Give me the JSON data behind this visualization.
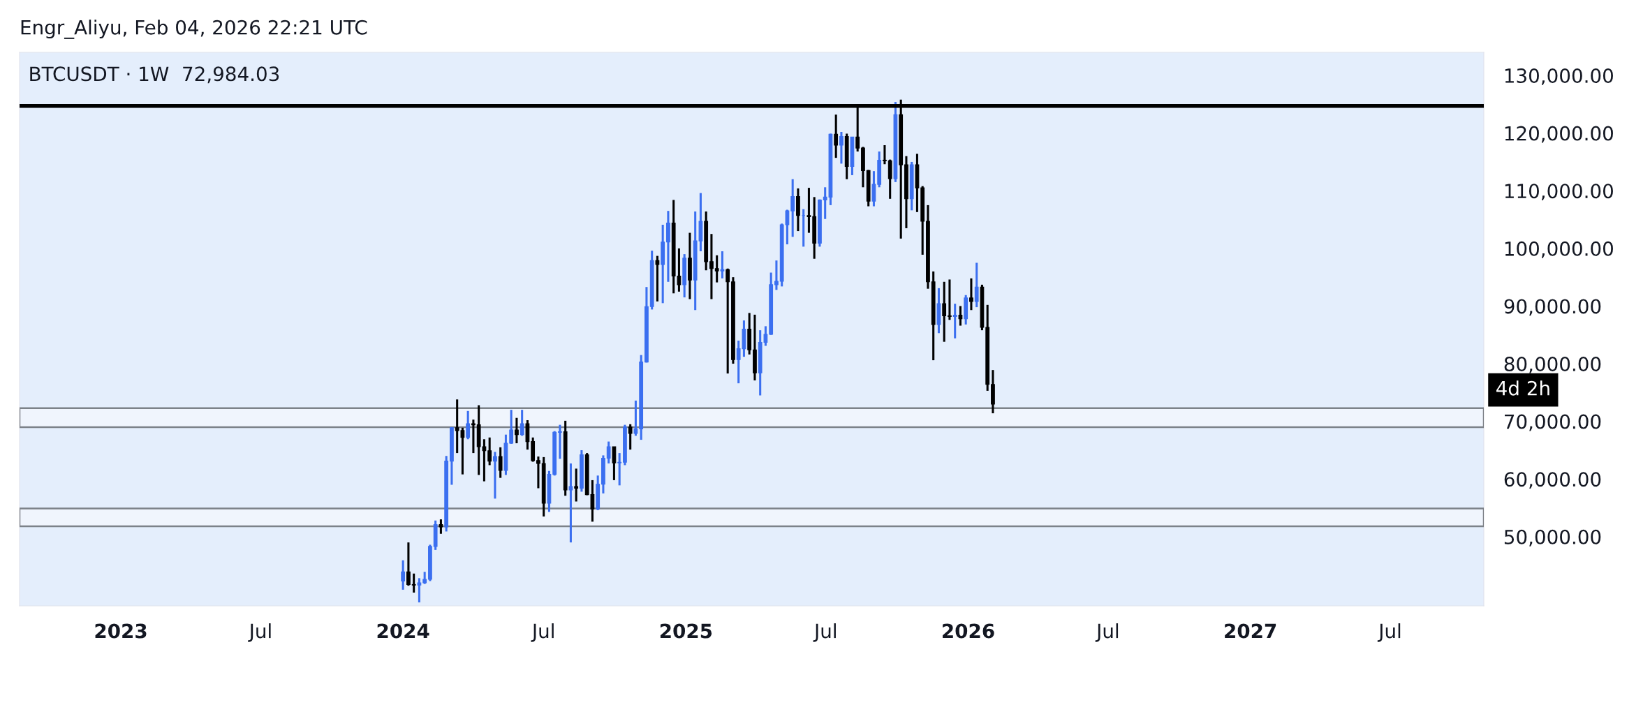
{
  "chart_data": {
    "type": "candlestick",
    "title": "BTCUSDT · 1W  72,984.03",
    "annotations": [
      "Engr_Aliyu, Feb 04, 2026 22:21 UTC",
      "4d 2h"
    ],
    "x": [
      "2024-01-01",
      "2024-01-08",
      "2024-01-15",
      "2024-01-22",
      "2024-01-29",
      "2024-02-05",
      "2024-02-12",
      "2024-02-19",
      "2024-02-26",
      "2024-03-04",
      "2024-03-11",
      "2024-03-18",
      "2024-03-25",
      "2024-04-01",
      "2024-04-08",
      "2024-04-15",
      "2024-04-22",
      "2024-04-29",
      "2024-05-06",
      "2024-05-13",
      "2024-05-20",
      "2024-05-27",
      "2024-06-03",
      "2024-06-10",
      "2024-06-17",
      "2024-06-24",
      "2024-07-01",
      "2024-07-08",
      "2024-07-15",
      "2024-07-22",
      "2024-07-29",
      "2024-08-05",
      "2024-08-12",
      "2024-08-19",
      "2024-08-26",
      "2024-09-02",
      "2024-09-09",
      "2024-09-16",
      "2024-09-23",
      "2024-09-30",
      "2024-10-07",
      "2024-10-14",
      "2024-10-21",
      "2024-10-28",
      "2024-11-04",
      "2024-11-11",
      "2024-11-18",
      "2024-11-25",
      "2024-12-02",
      "2024-12-09",
      "2024-12-16",
      "2024-12-23",
      "2024-12-30",
      "2025-01-06",
      "2025-01-13",
      "2025-01-20",
      "2025-01-27",
      "2025-02-03",
      "2025-02-10",
      "2025-02-17",
      "2025-02-24",
      "2025-03-03",
      "2025-03-10",
      "2025-03-17",
      "2025-03-24",
      "2025-03-31",
      "2025-04-07",
      "2025-04-14",
      "2025-04-21",
      "2025-04-28",
      "2025-05-05",
      "2025-05-12",
      "2025-05-19",
      "2025-05-26",
      "2025-06-02",
      "2025-06-09",
      "2025-06-16",
      "2025-06-23",
      "2025-06-30",
      "2025-07-07",
      "2025-07-14",
      "2025-07-21",
      "2025-07-28",
      "2025-08-04",
      "2025-08-11",
      "2025-08-18",
      "2025-08-25",
      "2025-09-01",
      "2025-09-08",
      "2025-09-15",
      "2025-09-22",
      "2025-09-29",
      "2025-10-06",
      "2025-10-13",
      "2025-10-20",
      "2025-10-27",
      "2025-11-03",
      "2025-11-10",
      "2025-11-17",
      "2025-11-24",
      "2025-12-01",
      "2025-12-08",
      "2025-12-15",
      "2025-12-22",
      "2025-12-29",
      "2026-01-05",
      "2026-01-12",
      "2026-01-19",
      "2026-01-26",
      "2026-02-02"
    ],
    "ohlc": [
      [
        42300,
        45900,
        40800,
        43900
      ],
      [
        43900,
        49000,
        41500,
        41700
      ],
      [
        41700,
        43600,
        40300,
        41600
      ],
      [
        41600,
        42800,
        38600,
        42000
      ],
      [
        42000,
        43900,
        41800,
        42600
      ],
      [
        42600,
        48600,
        42300,
        48300
      ],
      [
        48300,
        52800,
        47700,
        52100
      ],
      [
        52100,
        53000,
        50500,
        51700
      ],
      [
        51700,
        64000,
        50900,
        63100
      ],
      [
        63100,
        69000,
        59000,
        68900
      ],
      [
        68900,
        73800,
        64500,
        68400
      ],
      [
        68400,
        68900,
        60800,
        67200
      ],
      [
        67200,
        71800,
        66900,
        69600
      ],
      [
        69600,
        70300,
        64500,
        69400
      ],
      [
        69400,
        72800,
        60700,
        65600
      ],
      [
        65600,
        66900,
        59600,
        64900
      ],
      [
        64900,
        67200,
        62400,
        63100
      ],
      [
        63100,
        64700,
        56600,
        63900
      ],
      [
        63900,
        65500,
        60200,
        61500
      ],
      [
        61500,
        67700,
        60700,
        66200
      ],
      [
        66200,
        72000,
        66100,
        68500
      ],
      [
        68500,
        70600,
        66200,
        67700
      ],
      [
        67700,
        72000,
        67500,
        69600
      ],
      [
        69600,
        70200,
        65100,
        66500
      ],
      [
        66500,
        67200,
        63000,
        63200
      ],
      [
        63200,
        63900,
        58400,
        62700
      ],
      [
        62700,
        63800,
        53500,
        55800
      ],
      [
        55800,
        61400,
        54300,
        60800
      ],
      [
        60800,
        68300,
        60600,
        68100
      ],
      [
        68100,
        69400,
        63500,
        68200
      ],
      [
        68200,
        70100,
        57100,
        58100
      ],
      [
        58100,
        62700,
        49000,
        58700
      ],
      [
        58700,
        61800,
        56100,
        58400
      ],
      [
        58400,
        65000,
        57800,
        64200
      ],
      [
        64200,
        64500,
        57200,
        57300
      ],
      [
        57300,
        59800,
        52600,
        54800
      ],
      [
        54800,
        60600,
        54600,
        59100
      ],
      [
        59100,
        64100,
        57500,
        63600
      ],
      [
        63600,
        66500,
        62700,
        65600
      ],
      [
        65600,
        65600,
        59800,
        62800
      ],
      [
        62800,
        64500,
        58900,
        62900
      ],
      [
        62900,
        69400,
        62400,
        69000
      ],
      [
        69000,
        69500,
        65100,
        67900
      ],
      [
        67900,
        73600,
        67500,
        68700
      ],
      [
        68700,
        81500,
        66800,
        80300
      ],
      [
        80300,
        93300,
        80200,
        89900
      ],
      [
        89900,
        99600,
        89400,
        97900
      ],
      [
        97900,
        98700,
        90800,
        97200
      ],
      [
        97200,
        104100,
        90500,
        101100
      ],
      [
        101100,
        106500,
        94200,
        104400
      ],
      [
        104400,
        108400,
        92200,
        95200
      ],
      [
        95200,
        100000,
        92500,
        93700
      ],
      [
        93700,
        99000,
        91500,
        98300
      ],
      [
        98300,
        102700,
        91200,
        94500
      ],
      [
        94500,
        106400,
        89300,
        101300
      ],
      [
        101300,
        109600,
        99500,
        104700
      ],
      [
        104700,
        106400,
        96200,
        97700
      ],
      [
        97700,
        102500,
        91200,
        96500
      ],
      [
        96500,
        98800,
        94100,
        96100
      ],
      [
        96100,
        99500,
        94800,
        96300
      ],
      [
        96300,
        96500,
        78300,
        94200
      ],
      [
        94200,
        95000,
        80000,
        80700
      ],
      [
        80700,
        84000,
        76600,
        82600
      ],
      [
        82600,
        87500,
        81200,
        86000
      ],
      [
        86000,
        88800,
        81600,
        82400
      ],
      [
        82400,
        88500,
        77100,
        78400
      ],
      [
        78400,
        85800,
        74500,
        83700
      ],
      [
        83700,
        86500,
        83100,
        85100
      ],
      [
        85100,
        95800,
        85000,
        93700
      ],
      [
        93700,
        97900,
        92800,
        94300
      ],
      [
        94300,
        104300,
        93400,
        104100
      ],
      [
        104100,
        106700,
        100700,
        106500
      ],
      [
        106500,
        112000,
        102000,
        109000
      ],
      [
        109000,
        110400,
        103000,
        105700
      ],
      [
        105700,
        106800,
        100300,
        105700
      ],
      [
        105700,
        110500,
        102700,
        105500
      ],
      [
        105500,
        108900,
        98200,
        100900
      ],
      [
        100900,
        108500,
        100300,
        108400
      ],
      [
        108400,
        110600,
        105100,
        108900
      ],
      [
        108900,
        119900,
        107500,
        119800
      ],
      [
        119800,
        123200,
        115700,
        117900
      ],
      [
        117900,
        120200,
        114700,
        119400
      ],
      [
        119400,
        119900,
        112000,
        114200
      ],
      [
        114200,
        119300,
        112700,
        119300
      ],
      [
        119300,
        124500,
        116800,
        117400
      ],
      [
        117400,
        117600,
        110600,
        113500
      ],
      [
        113500,
        113600,
        107300,
        108200
      ],
      [
        108200,
        113400,
        107300,
        111100
      ],
      [
        111100,
        116800,
        110600,
        115300
      ],
      [
        115300,
        117900,
        114600,
        115200
      ],
      [
        115200,
        115400,
        108600,
        112100
      ],
      [
        112100,
        125400,
        111500,
        123200
      ],
      [
        123200,
        125800,
        101700,
        114500
      ],
      [
        114500,
        116000,
        103500,
        108600
      ],
      [
        108600,
        115000,
        106600,
        114500
      ],
      [
        114500,
        116400,
        106300,
        110500
      ],
      [
        110500,
        110800,
        98900,
        104700
      ],
      [
        104700,
        107500,
        93000,
        94200
      ],
      [
        94200,
        96000,
        80600,
        86800
      ],
      [
        86800,
        93100,
        85300,
        90400
      ],
      [
        90400,
        94200,
        83800,
        88300
      ],
      [
        88300,
        94600,
        87600,
        88200
      ],
      [
        88200,
        90400,
        84400,
        88400
      ],
      [
        88400,
        90000,
        86600,
        87800
      ],
      [
        87800,
        91900,
        86800,
        91400
      ],
      [
        91400,
        94800,
        89300,
        90800
      ],
      [
        90800,
        97500,
        89800,
        93300
      ],
      [
        93300,
        93700,
        85800,
        86300
      ],
      [
        86300,
        90200,
        75300,
        76400
      ],
      [
        76400,
        78900,
        71400,
        72984
      ]
    ],
    "colors": [
      "#3b6ff0",
      "#000000",
      "#000000",
      "#3b6ff0",
      "#3b6ff0",
      "#3b6ff0",
      "#3b6ff0",
      "#000000",
      "#3b6ff0",
      "#3b6ff0",
      "#000000",
      "#000000",
      "#3b6ff0",
      "#000000",
      "#000000",
      "#000000",
      "#000000",
      "#3b6ff0",
      "#000000",
      "#3b6ff0",
      "#3b6ff0",
      "#000000",
      "#3b6ff0",
      "#000000",
      "#000000",
      "#000000",
      "#000000",
      "#3b6ff0",
      "#3b6ff0",
      "#3b6ff0",
      "#000000",
      "#3b6ff0",
      "#000000",
      "#3b6ff0",
      "#000000",
      "#000000",
      "#3b6ff0",
      "#3b6ff0",
      "#3b6ff0",
      "#000000",
      "#3b6ff0",
      "#3b6ff0",
      "#000000",
      "#3b6ff0",
      "#3b6ff0",
      "#3b6ff0",
      "#3b6ff0",
      "#000000",
      "#3b6ff0",
      "#3b6ff0",
      "#000000",
      "#000000",
      "#3b6ff0",
      "#000000",
      "#3b6ff0",
      "#3b6ff0",
      "#000000",
      "#000000",
      "#000000",
      "#3b6ff0",
      "#000000",
      "#000000",
      "#3b6ff0",
      "#3b6ff0",
      "#000000",
      "#000000",
      "#3b6ff0",
      "#3b6ff0",
      "#3b6ff0",
      "#3b6ff0",
      "#3b6ff0",
      "#3b6ff0",
      "#3b6ff0",
      "#000000",
      "#3b6ff0",
      "#000000",
      "#000000",
      "#3b6ff0",
      "#3b6ff0",
      "#3b6ff0",
      "#000000",
      "#3b6ff0",
      "#000000",
      "#3b6ff0",
      "#000000",
      "#000000",
      "#000000",
      "#3b6ff0",
      "#3b6ff0",
      "#000000",
      "#000000",
      "#3b6ff0",
      "#000000",
      "#000000",
      "#3b6ff0",
      "#000000",
      "#000000",
      "#000000",
      "#000000",
      "#3b6ff0",
      "#000000",
      "#000000",
      "#3b6ff0",
      "#000000",
      "#3b6ff0",
      "#000000",
      "#3b6ff0",
      "#000000",
      "#000000",
      "#000000"
    ],
    "xlim": [
      "2022-08-23",
      "2027-10-30"
    ],
    "xticks": [
      {
        "value": "2023",
        "label": "2023"
      },
      {
        "value": "2023-07",
        "label": "Jul"
      },
      {
        "value": "2024",
        "label": "2024"
      },
      {
        "value": "2024-07",
        "label": "Jul"
      },
      {
        "value": "2025",
        "label": "2025"
      },
      {
        "value": "2025-07",
        "label": "Jul"
      },
      {
        "value": "2026",
        "label": "2026"
      },
      {
        "value": "2026-07",
        "label": "Jul"
      },
      {
        "value": "2027",
        "label": "2027"
      },
      {
        "value": "2027-07",
        "label": "Jul"
      }
    ],
    "ylim": [
      38000,
      134000
    ],
    "yticks": [
      {
        "value": 50000,
        "label": "50,000.00"
      },
      {
        "value": 60000,
        "label": "60,000.00"
      },
      {
        "value": 70000,
        "label": "70,000.00"
      },
      {
        "value": 80000,
        "label": "80,000.00"
      },
      {
        "value": 90000,
        "label": "90,000.00"
      },
      {
        "value": 100000,
        "label": "100,000.00"
      },
      {
        "value": 110000,
        "label": "110,000.00"
      },
      {
        "value": 120000,
        "label": "120,000.00"
      },
      {
        "value": 130000,
        "label": "130,000.00"
      }
    ],
    "ref_lines": [
      {
        "axis": "y",
        "value": 124700,
        "label": null,
        "color": "#000000",
        "line_style": "solid"
      }
    ],
    "bands": [
      {
        "axis": "y",
        "from": 69000,
        "to": 72300,
        "label": null,
        "color": "#ffffff"
      },
      {
        "axis": "y",
        "from": 51800,
        "to": 54900,
        "label": null,
        "color": "#ffffff"
      }
    ],
    "grid": false
  }
}
